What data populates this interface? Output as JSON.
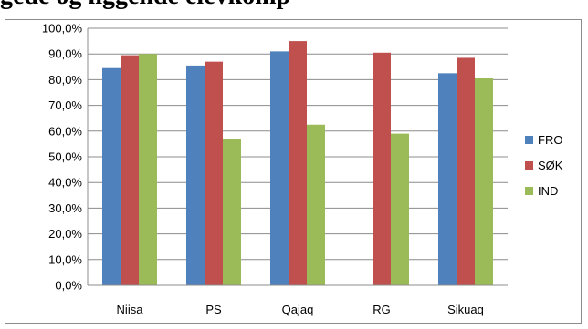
{
  "page_title": "gede og lig­gende elevkomp",
  "chart_data": {
    "type": "bar",
    "title": "",
    "xlabel": "",
    "ylabel": "",
    "categories": [
      "Niisa",
      "PS",
      "Qajaq",
      "RG",
      "Sikuaq"
    ],
    "series": [
      {
        "name": "FRO",
        "color": "#4f81bd",
        "values": [
          84.5,
          85.5,
          91.0,
          null,
          82.5
        ]
      },
      {
        "name": "SØK",
        "color": "#c0504d",
        "values": [
          89.5,
          87.0,
          95.0,
          90.5,
          88.5
        ]
      },
      {
        "name": "IND",
        "color": "#9bbb59",
        "values": [
          90.0,
          57.0,
          62.5,
          59.0,
          80.5
        ]
      }
    ],
    "ylim": [
      0,
      100
    ],
    "yticks": [
      "0,0%",
      "10,0%",
      "20,0%",
      "30,0%",
      "40,0%",
      "50,0%",
      "60,0%",
      "70,0%",
      "80,0%",
      "90,0%",
      "100,0%"
    ],
    "grid": true,
    "legend_position": "right"
  }
}
